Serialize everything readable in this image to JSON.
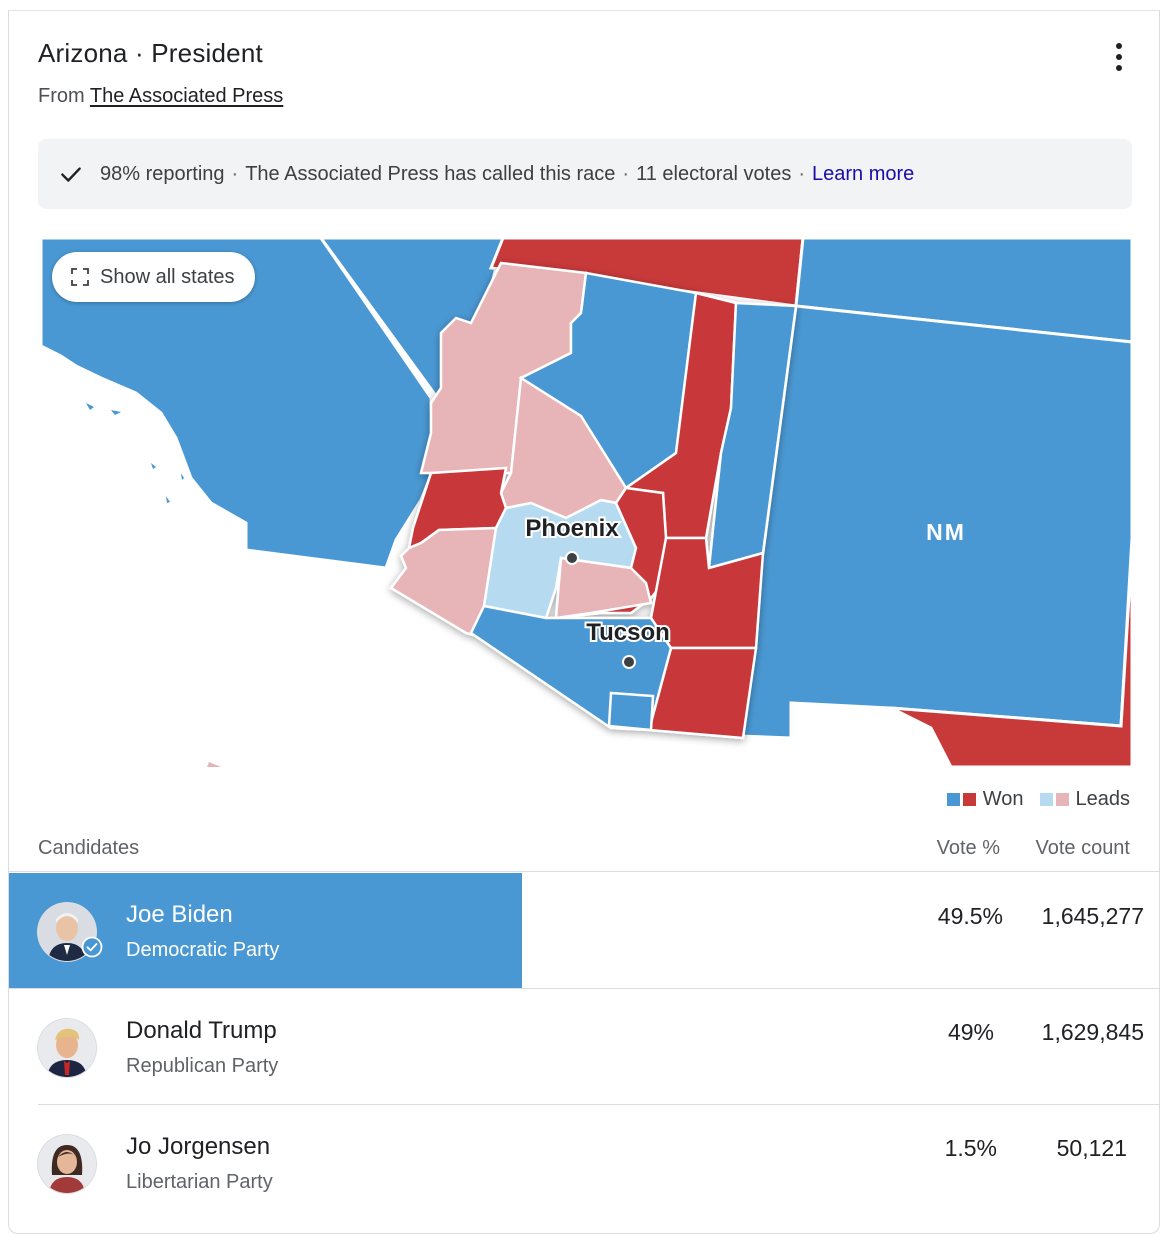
{
  "header": {
    "title": "Arizona · President",
    "source_prefix": "From",
    "source_link": "The Associated Press",
    "menu_icon": "more-vert-icon"
  },
  "status": {
    "icon": "check-icon",
    "reporting": "98% reporting",
    "called": "The Associated Press has called this race",
    "electoral": "11 electoral votes",
    "learn_more": "Learn more"
  },
  "map": {
    "show_all_label": "Show all states",
    "show_all_icon": "expand-icon",
    "city_phoenix": "Phoenix",
    "city_tucson": "Tucson",
    "state_label": "NM",
    "colors": {
      "dem_won": "#4a98d3",
      "rep_won": "#c8393a",
      "dem_leads": "#b6dbf1",
      "rep_leads": "#e7b4b7"
    }
  },
  "legend": {
    "won_label": "Won",
    "leads_label": "Leads"
  },
  "table": {
    "headers": {
      "candidates": "Candidates",
      "vote_pct": "Vote %",
      "vote_count": "Vote count"
    },
    "rows": [
      {
        "name": "Joe Biden",
        "party": "Democratic Party",
        "vote_pct": "49.5%",
        "vote_count": "1,645,277",
        "vote_share": 0.495,
        "winner": true,
        "bar_color": "#4a98d3"
      },
      {
        "name": "Donald Trump",
        "party": "Republican Party",
        "vote_pct": "49%",
        "vote_count": "1,629,845",
        "vote_share": 0.49,
        "winner": false
      },
      {
        "name": "Jo Jorgensen",
        "party": "Libertarian Party",
        "vote_pct": "1.5%",
        "vote_count": "50,121",
        "vote_share": 0.015,
        "winner": false
      }
    ]
  }
}
